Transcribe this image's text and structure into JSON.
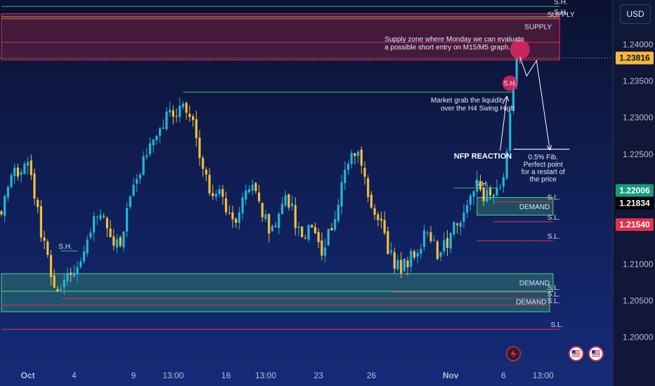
{
  "currency_button": "USD",
  "chart_data": {
    "type": "candlestick",
    "symbol_quote": "USD",
    "y_axis": {
      "ticks": [
        1.2,
        1.205,
        1.21,
        1.215,
        1.22,
        1.225,
        1.23,
        1.235,
        1.24
      ],
      "tick_labels": [
        "1.20000",
        "1.20500",
        "1.21000",
        "1.21500",
        "1.22000",
        "1.22500",
        "1.23000",
        "1.23500",
        "1.24000"
      ],
      "range": [
        1.197,
        1.2455
      ]
    },
    "x_axis": {
      "tick_labels": [
        "Oct",
        "4",
        "9",
        "13:00",
        "16",
        "13:00",
        "23",
        "26",
        "Nov",
        "6",
        "13:00"
      ],
      "tick_index": [
        8,
        22,
        40,
        52,
        68,
        80,
        96,
        112,
        136,
        152,
        164
      ],
      "bar_count": 170
    },
    "price_tags": [
      {
        "label": "1.23816",
        "value": 1.23816,
        "bg": "#f5b93a",
        "fg": "#131722"
      },
      {
        "label": "1.22006",
        "value": 1.22006,
        "bg": "#159b7c",
        "fg": "#ffffff"
      },
      {
        "label": "1.21834",
        "value": 1.21834,
        "bg": "#000000",
        "fg": "#ffffff"
      },
      {
        "label": "1.21540",
        "value": 1.2154,
        "bg": "#e0314b",
        "fg": "#ffffff"
      }
    ],
    "zones": [
      {
        "label": "SUPPLY",
        "type": "supply",
        "top": 1.2442,
        "bottom": 1.2379,
        "from": 0,
        "to": 169
      },
      {
        "label": "DEMAND",
        "type": "demand",
        "top": 1.2191,
        "bottom": 1.2167,
        "from": 144,
        "to": 167
      },
      {
        "label": "DEMAND",
        "type": "demand",
        "top": 1.2087,
        "bottom": 1.2063,
        "from": 0,
        "to": 167
      },
      {
        "label": "DEMAND",
        "type": "demand",
        "top": 1.2063,
        "bottom": 1.2035,
        "from": 0,
        "to": 166
      }
    ],
    "levels": [
      {
        "label": "S.H.",
        "value": 1.2452,
        "color": "#3bbf6b",
        "from": 0,
        "to": 169,
        "label_at": 169
      },
      {
        "label": "S.H.",
        "value": 1.2438,
        "color": "#3bbf6b",
        "from": 0,
        "to": 169,
        "label_at": 169
      },
      {
        "label": "SUPPLY",
        "value": 1.2435,
        "color": "#e0314b",
        "from": 0,
        "to": 169,
        "label_at": 167
      },
      {
        "label": "",
        "value": 1.2436,
        "color": "#e0314b",
        "from": 0,
        "to": 169,
        "label_at": 169
      },
      {
        "label": "",
        "value": 1.2403,
        "color": "#e0314b",
        "from": 0,
        "to": 169,
        "label_at": 169
      },
      {
        "label": "",
        "value": 1.2335,
        "color": "#3bbf6b",
        "from": 55,
        "to": 155,
        "label_at": 155
      },
      {
        "label": "S.H.",
        "value": 1.2204,
        "color": "#3bbf6b",
        "from": 137,
        "to": 150,
        "label_at": 145
      },
      {
        "label": "S.L.",
        "value": 1.2185,
        "color": "#e0314b",
        "from": 149,
        "to": 167,
        "label_at": 167
      },
      {
        "label": "S.L.",
        "value": 1.2158,
        "color": "#e0314b",
        "from": 149,
        "to": 167,
        "label_at": 167
      },
      {
        "label": "S.L.",
        "value": 1.2132,
        "color": "#e0314b",
        "from": 144,
        "to": 167,
        "label_at": 167
      },
      {
        "label": "S.H.",
        "value": 1.2118,
        "color": "#3bbf6b",
        "from": 18,
        "to": 23,
        "label_at": 19
      },
      {
        "label": "S.L.",
        "value": 1.2062,
        "color": "#e0314b",
        "from": 118,
        "to": 167,
        "label_at": 167
      },
      {
        "label": "S.L.",
        "value": 1.2053,
        "color": "#e0314b",
        "from": 18,
        "to": 167,
        "label_at": 167
      },
      {
        "label": "S.L.",
        "value": 1.2044,
        "color": "#e0314b",
        "from": 0,
        "to": 166,
        "label_at": 167
      },
      {
        "label": "S.L.",
        "value": 1.2011,
        "color": "#e0314b",
        "from": 0,
        "to": 169,
        "label_at": 168
      }
    ],
    "current_price": 1.23816,
    "annotations": [
      {
        "text": "Supply zone where Monday we can evaluate",
        "x_index": 116,
        "value": 1.2404,
        "cls": "ann",
        "anchor": "start"
      },
      {
        "text": "a possible short entry on M15/M5 graph.",
        "x_index": 116,
        "value": 1.2393,
        "cls": "ann",
        "anchor": "start"
      },
      {
        "text": "Market grab the liquidity",
        "x_index": 130,
        "value": 1.2321,
        "cls": "ann",
        "anchor": "start"
      },
      {
        "text": "over the H4 Swing High",
        "x_index": 133,
        "value": 1.231,
        "cls": "ann",
        "anchor": "start"
      },
      {
        "text": "NFP REACTION",
        "x_index": 137,
        "value": 1.2244,
        "cls": "ann-bold",
        "anchor": "start"
      },
      {
        "text": "0.5% Fib.",
        "x_index": 164,
        "value": 1.2243,
        "cls": "ann",
        "anchor": "middle"
      },
      {
        "text": "Perfect point",
        "x_index": 164,
        "value": 1.2233,
        "cls": "ann",
        "anchor": "middle"
      },
      {
        "text": "for a restart of",
        "x_index": 164,
        "value": 1.2223,
        "cls": "ann",
        "anchor": "middle"
      },
      {
        "text": "the price",
        "x_index": 164,
        "value": 1.2213,
        "cls": "ann",
        "anchor": "middle"
      },
      {
        "text": "S.H.",
        "x_index": 154,
        "value": 1.2344,
        "cls": "ann",
        "anchor": "middle"
      }
    ],
    "circles": [
      {
        "x_index": 157,
        "value": 1.2393,
        "r": 14
      },
      {
        "x_index": 154,
        "value": 1.2347,
        "r": 11
      }
    ],
    "projection_path": [
      {
        "x_index": 157,
        "value": 1.2383
      },
      {
        "x_index": 159,
        "value": 1.2357
      },
      {
        "x_index": 162,
        "value": 1.2378
      },
      {
        "x_index": 166,
        "value": 1.2257
      }
    ],
    "arrow_to_sh": [
      {
        "x_index": 151,
        "value": 1.2255
      },
      {
        "x_index": 153,
        "value": 1.2328
      }
    ],
    "fib_line": {
      "value": 1.2257,
      "from": 155,
      "to": 172
    },
    "events": [
      {
        "icon": "lightning-icon",
        "x_index": 155
      },
      {
        "icon": "us-flag-icon",
        "x_index": 174
      },
      {
        "icon": "us-flag-icon",
        "x_index": 180
      }
    ],
    "candles": {
      "seed": 20231103,
      "anchors": [
        [
          0,
          1.2175
        ],
        [
          4,
          1.2225
        ],
        [
          8,
          1.2238
        ],
        [
          11,
          1.2168
        ],
        [
          14,
          1.2105
        ],
        [
          16,
          1.2068
        ],
        [
          20,
          1.2082
        ],
        [
          23,
          1.2095
        ],
        [
          27,
          1.2152
        ],
        [
          30,
          1.2172
        ],
        [
          33,
          1.2142
        ],
        [
          36,
          1.2125
        ],
        [
          40,
          1.2208
        ],
        [
          44,
          1.2252
        ],
        [
          48,
          1.2285
        ],
        [
          52,
          1.231
        ],
        [
          55,
          1.2315
        ],
        [
          58,
          1.2296
        ],
        [
          60,
          1.225
        ],
        [
          63,
          1.2195
        ],
        [
          66,
          1.22
        ],
        [
          70,
          1.216
        ],
        [
          73,
          1.2182
        ],
        [
          76,
          1.2205
        ],
        [
          79,
          1.2165
        ],
        [
          82,
          1.2145
        ],
        [
          85,
          1.219
        ],
        [
          88,
          1.2175
        ],
        [
          91,
          1.213
        ],
        [
          94,
          1.215
        ],
        [
          97,
          1.212
        ],
        [
          100,
          1.2155
        ],
        [
          103,
          1.2205
        ],
        [
          106,
          1.2255
        ],
        [
          108,
          1.226
        ],
        [
          110,
          1.2225
        ],
        [
          112,
          1.218
        ],
        [
          115,
          1.215
        ],
        [
          118,
          1.2108
        ],
        [
          121,
          1.209
        ],
        [
          123,
          1.2105
        ],
        [
          126,
          1.2125
        ],
        [
          129,
          1.214
        ],
        [
          132,
          1.2118
        ],
        [
          135,
          1.2125
        ],
        [
          138,
          1.216
        ],
        [
          141,
          1.2175
        ],
        [
          144,
          1.221
        ],
        [
          146,
          1.2195
        ],
        [
          148,
          1.2188
        ],
        [
          150,
          1.2198
        ],
        [
          152,
          1.2212
        ],
        [
          154,
          1.23
        ],
        [
          155,
          1.234
        ],
        [
          156,
          1.2392
        ],
        [
          157,
          1.2381
        ]
      ]
    }
  }
}
